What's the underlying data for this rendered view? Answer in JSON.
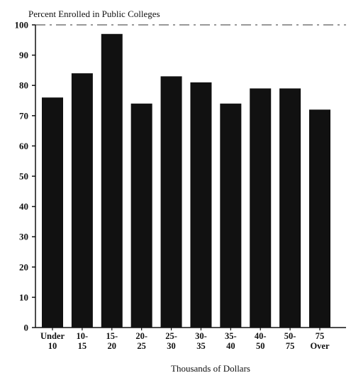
{
  "chart_data": {
    "type": "bar",
    "title": "",
    "ylabel": "Percent Enrolled in Public Colleges",
    "xlabel": "Thousands of Dollars",
    "ylim": [
      0,
      100
    ],
    "yticks": [
      0,
      10,
      20,
      30,
      40,
      50,
      60,
      70,
      80,
      90,
      100
    ],
    "categories": [
      [
        "Under",
        "10"
      ],
      [
        "10-",
        "15"
      ],
      [
        "15-",
        "20"
      ],
      [
        "20-",
        "25"
      ],
      [
        "25-",
        "30"
      ],
      [
        "30-",
        "35"
      ],
      [
        "35-",
        "40"
      ],
      [
        "40-",
        "50"
      ],
      [
        "50-",
        "75"
      ],
      [
        "75",
        "Over"
      ]
    ],
    "values": [
      76,
      84,
      97,
      74,
      83,
      81,
      74,
      79,
      79,
      72
    ],
    "bar_color": "#111111",
    "grid": false,
    "legend": "none"
  }
}
